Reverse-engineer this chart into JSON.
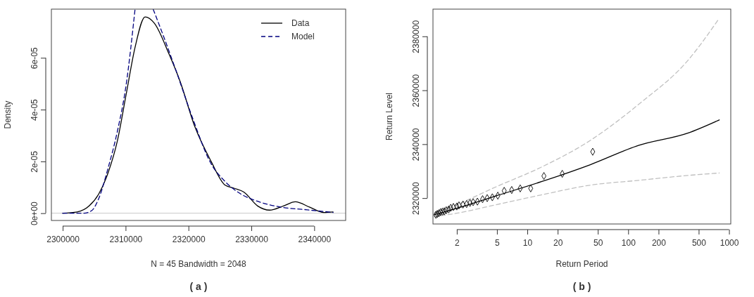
{
  "chart_data": [
    {
      "type": "line",
      "xlabel": "N = 45   Bandwidth = 2048",
      "ylabel": "Density",
      "annotations": [
        "( a )"
      ],
      "xlim": [
        2298200,
        2345000
      ],
      "ylim": [
        -2.8e-06,
        7.88e-05
      ],
      "xticks": [
        2300000,
        2310000,
        2320000,
        2330000,
        2340000
      ],
      "yticks": [
        {
          "value": 0,
          "label": "0e+00"
        },
        {
          "value": 2e-05,
          "label": "2e-05"
        },
        {
          "value": 4e-05,
          "label": "4e-05"
        },
        {
          "value": 6e-05,
          "label": "6e-05"
        }
      ],
      "ref_lines": [
        {
          "axis": "y",
          "value": 0,
          "color": "#c8c8c8"
        }
      ],
      "legend": "top right",
      "grid": false,
      "series": [
        {
          "name": "Data",
          "color": "#000000",
          "line_style": "solid",
          "x": [
            2300000,
            2302300,
            2304200,
            2305700,
            2307200,
            2308700,
            2310100,
            2311500,
            2313100,
            2314600,
            2316900,
            2318700,
            2321000,
            2323600,
            2325800,
            2327300,
            2328800,
            2331000,
            2332900,
            2335100,
            2337000,
            2339300,
            2341500,
            2343000
          ],
          "values": [
            0,
            5e-07,
            2.8e-06,
            7.3e-06,
            1.55e-05,
            2.8e-05,
            4.6e-05,
            6.4e-05,
            7.58e-05,
            7.33e-05,
            6.15e-05,
            5.07e-05,
            3.35e-05,
            2e-05,
            1.09e-05,
            9.6e-06,
            8.2e-06,
            2.8e-06,
            1.2e-06,
            2.8e-06,
            4.4e-06,
            2.3e-06,
            3e-07,
            5e-07
          ]
        },
        {
          "name": "Model",
          "color": "#00007f",
          "line_style": "dashed",
          "x": [
            2300000,
            2303400,
            2304600,
            2305700,
            2307200,
            2308700,
            2310100,
            2311500,
            2313000,
            2314400,
            2316100,
            2318000,
            2320600,
            2323600,
            2325800,
            2328400,
            2331000,
            2334800,
            2338500,
            2343000
          ],
          "values": [
            0,
            0,
            1e-06,
            5.5e-06,
            1.73e-05,
            3.17e-05,
            4.98e-05,
            7.87e-05,
            null,
            7.87e-05,
            6.79e-05,
            5.52e-05,
            3.71e-05,
            1.91e-05,
            1.23e-05,
            7.3e-06,
            4.6e-06,
            2.3e-06,
            1.4e-06,
            3e-07
          ]
        }
      ]
    },
    {
      "type": "line",
      "xlabel": "Return Period",
      "ylabel": "Return Level",
      "annotations": [
        "( b )"
      ],
      "log": "x",
      "xlim": [
        1.16,
        1040
      ],
      "ylim": [
        2310400,
        2390100
      ],
      "xticks": [
        2,
        5,
        10,
        20,
        50,
        100,
        200,
        500,
        1000
      ],
      "yticks": [
        2320000,
        2340000,
        2360000,
        2380000
      ],
      "grid": false,
      "series": [
        {
          "color": "#000000",
          "line_style": "solid",
          "x": [
            1.19,
            2,
            4.98,
            13.8,
            42.1,
            128,
            389,
            800
          ],
          "values": [
            2313800,
            2316200,
            2320900,
            2326100,
            2332400,
            2339600,
            2344100,
            2349000
          ]
        },
        {
          "color": "#c0c0c0",
          "line_style": "dashed",
          "x": [
            1.19,
            2,
            4.98,
            13.8,
            42.1,
            128,
            389,
            800
          ],
          "values": [
            2314400,
            2317600,
            2324300,
            2331500,
            2341400,
            2354900,
            2371000,
            2386700
          ]
        },
        {
          "color": "#c0c0c0",
          "line_style": "dashed",
          "x": [
            1.19,
            2,
            4.98,
            13.8,
            42.1,
            128,
            389,
            800
          ],
          "values": [
            2313100,
            2314400,
            2317600,
            2321200,
            2324800,
            2326600,
            2328400,
            2329300
          ]
        },
        {
          "type": "scatter",
          "marker": "diamond",
          "color": "#000000",
          "x": [
            44.5,
            22.2,
            14.6,
            10.8,
            8.5,
            7.0,
            5.9,
            5.1,
            4.5,
            4.0,
            3.6,
            3.2,
            2.9,
            2.7,
            2.5,
            2.3,
            2.1,
            2.0,
            1.85,
            1.74,
            1.66,
            1.57,
            1.5,
            1.44,
            1.38,
            1.33,
            1.28,
            1.24
          ],
          "values": [
            2337200,
            2329000,
            2328200,
            2323600,
            2323600,
            2323000,
            2322700,
            2320900,
            2320300,
            2320000,
            2319600,
            2318700,
            2318500,
            2318200,
            2317800,
            2317600,
            2317300,
            2316900,
            2316700,
            2316400,
            2315800,
            2315500,
            2315100,
            2315000,
            2314800,
            2314400,
            2314100,
            2313800
          ]
        }
      ]
    }
  ]
}
